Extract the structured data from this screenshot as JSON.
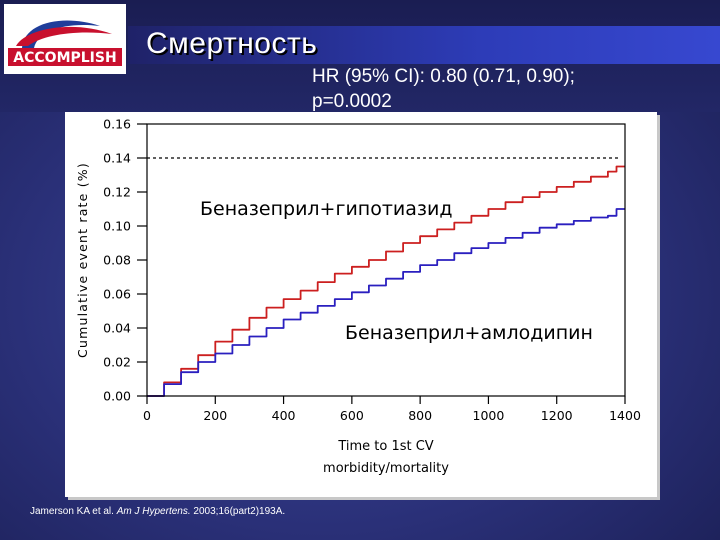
{
  "slide": {
    "title": "Смертность",
    "hr_line1": "HR (95% CI): 0.80 (0.71, 0.90);",
    "hr_line2": "p=0.0002",
    "citation_authors": "Jamerson KA et al.",
    "citation_journal": "Am J Hypertens.",
    "citation_ref": "2003;16(part2)193A."
  },
  "logo": {
    "text": "ACCOMPLISH",
    "accent_color": "#c8102e",
    "swoosh_color": "#1f3d9a"
  },
  "colors": {
    "benazepril_hctz": "#cc1f1f",
    "benazepril_amlodipine": "#2a1fbf",
    "reference_line": "#000000"
  },
  "chart_data": {
    "type": "line",
    "xlabel_line1": "Time to 1st CV",
    "xlabel_line2": "morbidity/mortality",
    "ylabel": "Cumulative event rate (%)",
    "xlim": [
      0,
      1400
    ],
    "ylim": [
      0,
      0.16
    ],
    "xticks": [
      "0",
      "200",
      "400",
      "600",
      "800",
      "1000",
      "1200",
      "1400"
    ],
    "yticks": [
      "0.00",
      "0.02",
      "0.04",
      "0.06",
      "0.08",
      "0.10",
      "0.12",
      "0.14",
      "0.16"
    ],
    "reference_line_y": 0.14,
    "series": [
      {
        "name": "Беназеприл+гипотиазид",
        "color": "#cc1f1f",
        "x": [
          0,
          50,
          100,
          150,
          200,
          250,
          300,
          350,
          400,
          450,
          500,
          550,
          600,
          650,
          700,
          750,
          800,
          850,
          900,
          950,
          1000,
          1050,
          1100,
          1150,
          1200,
          1250,
          1300,
          1350,
          1375,
          1400
        ],
        "y": [
          0,
          0.008,
          0.016,
          0.024,
          0.032,
          0.039,
          0.046,
          0.052,
          0.057,
          0.062,
          0.067,
          0.072,
          0.076,
          0.08,
          0.085,
          0.09,
          0.094,
          0.098,
          0.102,
          0.106,
          0.11,
          0.114,
          0.117,
          0.12,
          0.123,
          0.126,
          0.129,
          0.132,
          0.135,
          0.135
        ]
      },
      {
        "name": "Беназеприл+амлодипин",
        "color": "#2a1fbf",
        "x": [
          0,
          50,
          100,
          150,
          200,
          250,
          300,
          350,
          400,
          450,
          500,
          550,
          600,
          650,
          700,
          750,
          800,
          850,
          900,
          950,
          1000,
          1050,
          1100,
          1150,
          1200,
          1250,
          1300,
          1350,
          1375,
          1400
        ],
        "y": [
          0,
          0.007,
          0.014,
          0.02,
          0.025,
          0.03,
          0.035,
          0.04,
          0.045,
          0.049,
          0.053,
          0.057,
          0.061,
          0.065,
          0.069,
          0.073,
          0.077,
          0.08,
          0.084,
          0.087,
          0.09,
          0.093,
          0.096,
          0.099,
          0.101,
          0.103,
          0.105,
          0.106,
          0.11,
          0.11
        ]
      }
    ],
    "series_labels": [
      "Беназеприл+гипотиазид",
      "Беназеприл+амлодипин"
    ]
  }
}
